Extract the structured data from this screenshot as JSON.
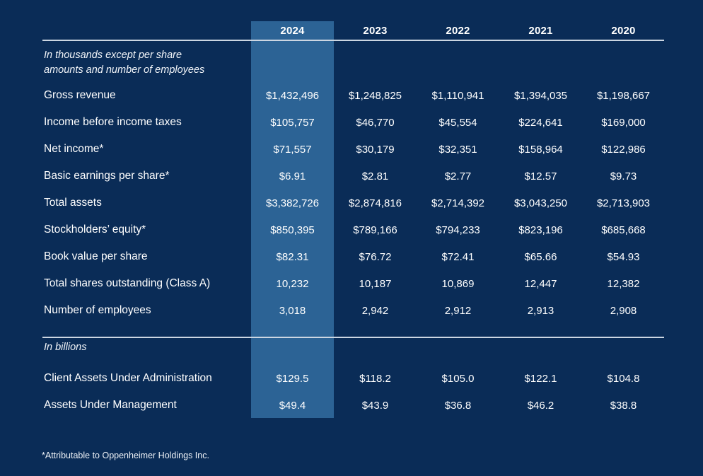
{
  "table": {
    "years": [
      "2024",
      "2023",
      "2022",
      "2021",
      "2020"
    ],
    "highlighted_year": "2024",
    "section1_note_line1": "In thousands except per share",
    "section1_note_line2": "amounts and number of employees",
    "rows": [
      {
        "label": "Gross revenue",
        "values": [
          "$1,432,496",
          "$1,248,825",
          "$1,110,941",
          "$1,394,035",
          "$1,198,667"
        ]
      },
      {
        "label": "Income before income taxes",
        "values": [
          "$105,757",
          "$46,770",
          "$45,554",
          "$224,641",
          "$169,000"
        ]
      },
      {
        "label": "Net income*",
        "values": [
          "$71,557",
          "$30,179",
          "$32,351",
          "$158,964",
          "$122,986"
        ]
      },
      {
        "label": "Basic earnings per share*",
        "values": [
          "$6.91",
          "$2.81",
          "$2.77",
          "$12.57",
          "$9.73"
        ]
      },
      {
        "label": "Total assets",
        "values": [
          "$3,382,726",
          "$2,874,816",
          "$2,714,392",
          "$3,043,250",
          "$2,713,903"
        ]
      },
      {
        "label": "Stockholders’ equity*",
        "values": [
          "$850,395",
          "$789,166",
          "$794,233",
          "$823,196",
          "$685,668"
        ]
      },
      {
        "label": "Book value per share",
        "values": [
          "$82.31",
          "$76.72",
          "$72.41",
          "$65.66",
          "$54.93"
        ]
      },
      {
        "label": "Total shares outstanding (Class A)",
        "values": [
          "10,232",
          "10,187",
          "10,869",
          "12,447",
          "12,382"
        ]
      },
      {
        "label": "Number of employees",
        "values": [
          "3,018",
          "2,942",
          "2,912",
          "2,913",
          "2,908"
        ]
      }
    ],
    "section2_note": "In billions",
    "rows2": [
      {
        "label": "Client Assets Under Administration",
        "values": [
          "$129.5",
          "$118.2",
          "$105.0",
          "$122.1",
          "$104.8"
        ]
      },
      {
        "label": "Assets Under Management",
        "values": [
          "$49.4",
          "$43.9",
          "$36.8",
          "$46.2",
          "$38.8"
        ]
      }
    ],
    "footnote": "*Attributable to Oppenheimer Holdings Inc."
  },
  "colors": {
    "background": "#0a2c57",
    "highlight_column": "#2c6395",
    "text": "#ffffff",
    "divider_line": "#ccd6e2"
  }
}
